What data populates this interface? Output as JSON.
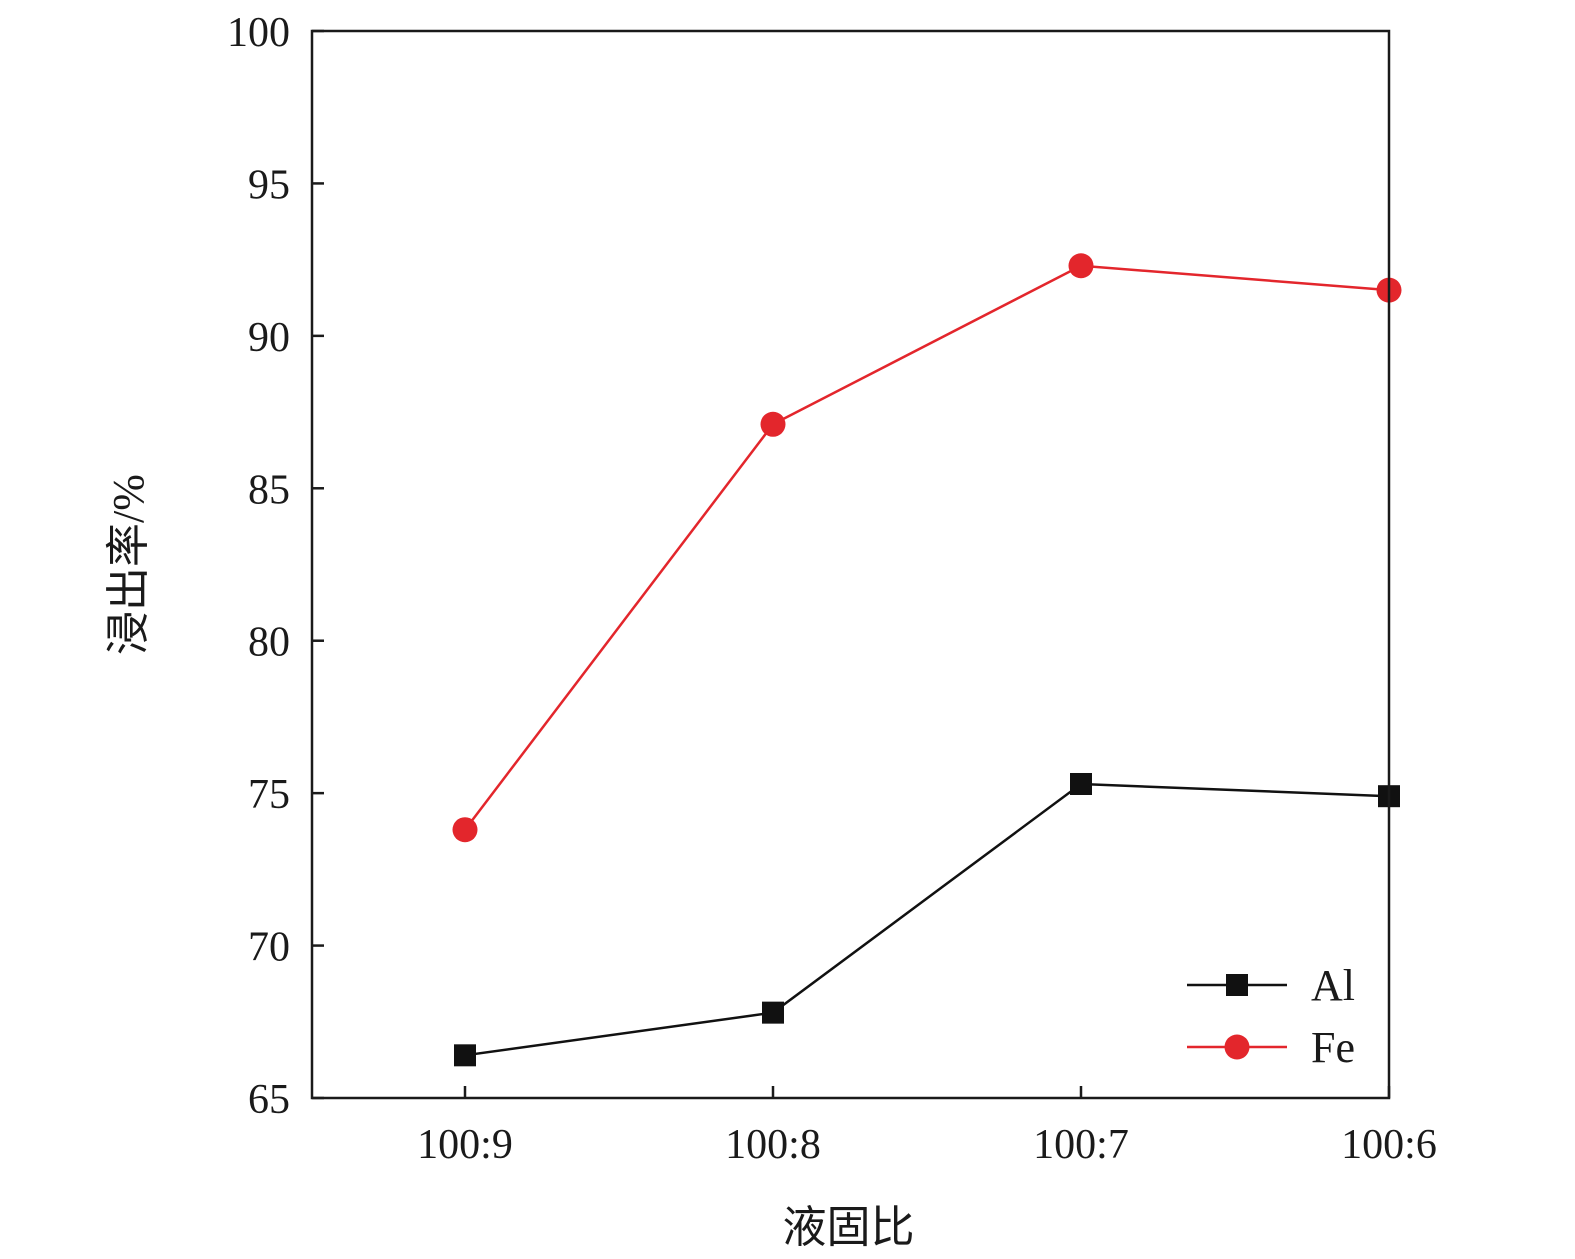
{
  "chart_data": {
    "type": "line",
    "title": "",
    "xlabel": "液固比",
    "ylabel": "浸出率/%",
    "categories": [
      "100:9",
      "100:8",
      "100:7",
      "100:6"
    ],
    "yticks": [
      65,
      70,
      75,
      80,
      85,
      90,
      95,
      100
    ],
    "ylim": [
      65,
      100
    ],
    "grid": false,
    "legend": "bottom-right",
    "series": [
      {
        "name": "Al",
        "marker": "square",
        "color": "#111111",
        "values": [
          66.4,
          67.8,
          75.3,
          74.9
        ]
      },
      {
        "name": "Fe",
        "marker": "circle",
        "color": "#e3262c",
        "values": [
          73.8,
          87.1,
          92.3,
          91.5
        ]
      }
    ]
  }
}
